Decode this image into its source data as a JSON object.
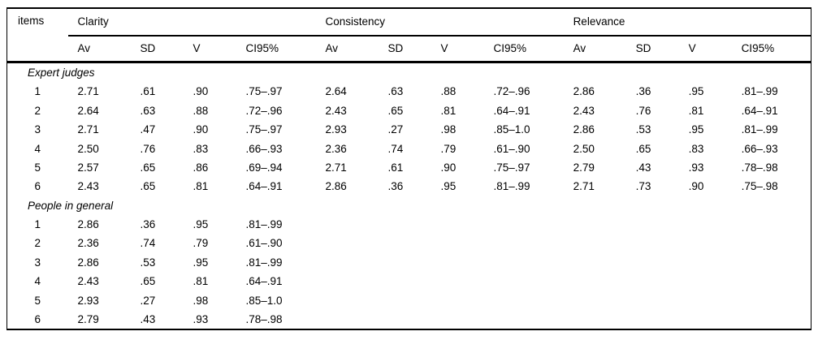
{
  "page": {
    "background_color": "#ffffff",
    "text_color": "#000000",
    "rule_color": "#000000"
  },
  "table": {
    "items_header": "items",
    "groups": [
      {
        "label": "Clarity"
      },
      {
        "label": "Consistency"
      },
      {
        "label": "Relevance"
      }
    ],
    "subheaders": [
      "Av",
      "SD",
      "V",
      "CI95%"
    ],
    "sections": [
      {
        "label": "Expert judges",
        "rows": [
          {
            "item": "1",
            "values": [
              "2.71",
              ".61",
              ".90",
              ".75–.97",
              "2.64",
              ".63",
              ".88",
              ".72–.96",
              "2.86",
              ".36",
              ".95",
              ".81–.99"
            ]
          },
          {
            "item": "2",
            "values": [
              "2.64",
              ".63",
              ".88",
              ".72–.96",
              "2.43",
              ".65",
              ".81",
              ".64–.91",
              "2.43",
              ".76",
              ".81",
              ".64–.91"
            ]
          },
          {
            "item": "3",
            "values": [
              "2.71",
              ".47",
              ".90",
              ".75–.97",
              "2.93",
              ".27",
              ".98",
              ".85–1.0",
              "2.86",
              ".53",
              ".95",
              ".81–.99"
            ]
          },
          {
            "item": "4",
            "values": [
              "2.50",
              ".76",
              ".83",
              ".66–.93",
              "2.36",
              ".74",
              ".79",
              ".61–.90",
              "2.50",
              ".65",
              ".83",
              ".66–.93"
            ]
          },
          {
            "item": "5",
            "values": [
              "2.57",
              ".65",
              ".86",
              ".69–.94",
              "2.71",
              ".61",
              ".90",
              ".75–.97",
              "2.79",
              ".43",
              ".93",
              ".78–.98"
            ]
          },
          {
            "item": "6",
            "values": [
              "2.43",
              ".65",
              ".81",
              ".64–.91",
              "2.86",
              ".36",
              ".95",
              ".81–.99",
              "2.71",
              ".73",
              ".90",
              ".75–.98"
            ]
          }
        ]
      },
      {
        "label": "People in general",
        "rows": [
          {
            "item": "1",
            "values": [
              "2.86",
              ".36",
              ".95",
              ".81–.99",
              "",
              "",
              "",
              "",
              "",
              "",
              "",
              ""
            ]
          },
          {
            "item": "2",
            "values": [
              "2.36",
              ".74",
              ".79",
              ".61–.90",
              "",
              "",
              "",
              "",
              "",
              "",
              "",
              ""
            ]
          },
          {
            "item": "3",
            "values": [
              "2.86",
              ".53",
              ".95",
              ".81–.99",
              "",
              "",
              "",
              "",
              "",
              "",
              "",
              ""
            ]
          },
          {
            "item": "4",
            "values": [
              "2.43",
              ".65",
              ".81",
              ".64–.91",
              "",
              "",
              "",
              "",
              "",
              "",
              "",
              ""
            ]
          },
          {
            "item": "5",
            "values": [
              "2.93",
              ".27",
              ".98",
              ".85–1.0",
              "",
              "",
              "",
              "",
              "",
              "",
              "",
              ""
            ]
          },
          {
            "item": "6",
            "values": [
              "2.79",
              ".43",
              ".93",
              ".78–.98",
              "",
              "",
              "",
              "",
              "",
              "",
              "",
              ""
            ]
          }
        ]
      }
    ]
  }
}
